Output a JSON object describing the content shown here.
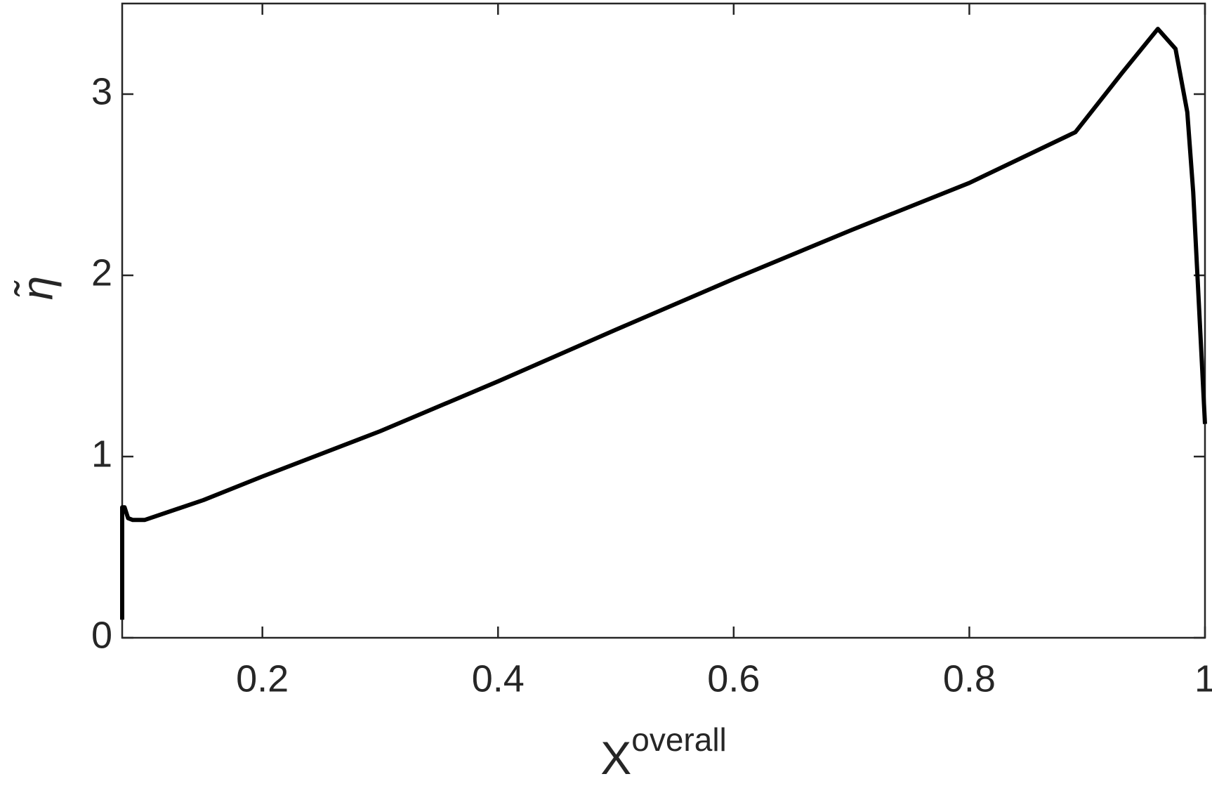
{
  "chart_data": {
    "type": "line",
    "xlabel": "X",
    "xlabel_superscript": "overall",
    "ylabel": "η̃",
    "x": [
      0.081,
      0.081,
      0.083,
      0.086,
      0.09,
      0.1,
      0.15,
      0.2,
      0.3,
      0.4,
      0.5,
      0.6,
      0.7,
      0.8,
      0.89,
      0.93,
      0.96,
      0.975,
      0.985,
      0.99,
      0.995,
      1.0
    ],
    "series": [
      {
        "color": "#000000",
        "values": [
          0.1,
          0.72,
          0.72,
          0.66,
          0.65,
          0.65,
          0.76,
          0.89,
          1.14,
          1.415,
          1.7,
          1.98,
          2.25,
          2.51,
          2.79,
          3.12,
          3.36,
          3.25,
          2.9,
          2.46,
          1.82,
          1.18
        ]
      }
    ],
    "xlim": [
      0.081,
      1
    ],
    "ylim": [
      0,
      3.5
    ],
    "xticks": [
      0.2,
      0.4,
      0.6,
      0.8,
      1
    ],
    "yticks": [
      0,
      1,
      2,
      3
    ]
  }
}
